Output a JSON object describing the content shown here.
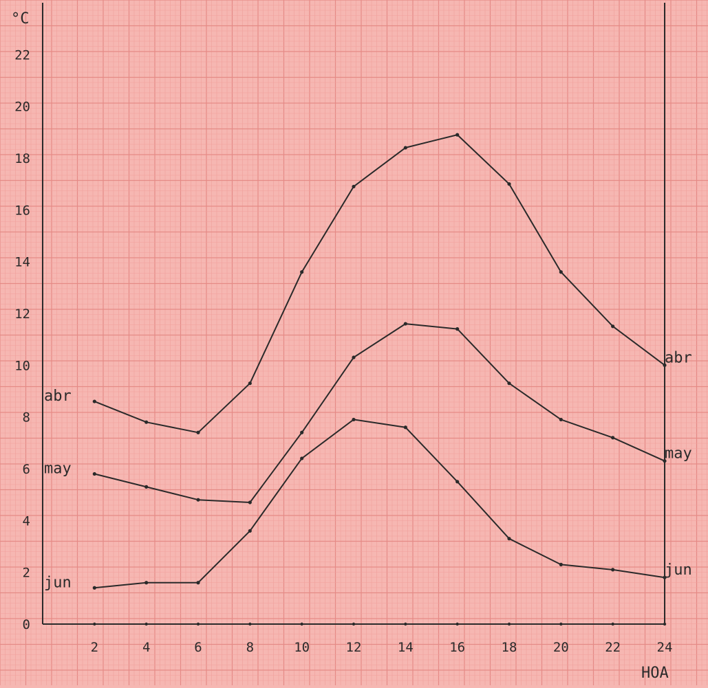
{
  "chart_data": {
    "type": "line",
    "y_unit_label": "°C",
    "xlabel": "HOA",
    "x": [
      2,
      4,
      6,
      8,
      10,
      12,
      14,
      16,
      18,
      20,
      22,
      24
    ],
    "x_tick_labels": [
      "2",
      "4",
      "6",
      "8",
      "10",
      "12",
      "14",
      "16",
      "18",
      "20",
      "22",
      "24"
    ],
    "y_tick_labels": [
      "0",
      "2",
      "4",
      "6",
      "8",
      "10",
      "12",
      "14",
      "16",
      "18",
      "20",
      "22"
    ],
    "xlim": [
      0,
      24
    ],
    "ylim": [
      0,
      24
    ],
    "grid": true,
    "series": [
      {
        "name": "abr",
        "values": [
          8.6,
          7.8,
          7.4,
          9.3,
          13.6,
          16.9,
          18.4,
          18.9,
          17.0,
          13.6,
          11.5,
          10.0
        ]
      },
      {
        "name": "may",
        "values": [
          5.8,
          5.3,
          4.8,
          4.7,
          7.4,
          10.3,
          11.6,
          11.4,
          9.3,
          7.9,
          7.2,
          6.3
        ]
      },
      {
        "name": "jun",
        "values": [
          1.4,
          1.6,
          1.6,
          3.6,
          6.4,
          7.9,
          7.6,
          5.5,
          3.3,
          2.3,
          2.1,
          1.8
        ]
      }
    ],
    "colors": {
      "paper": "#f6b7b2",
      "line": "#2a2a2a"
    }
  }
}
